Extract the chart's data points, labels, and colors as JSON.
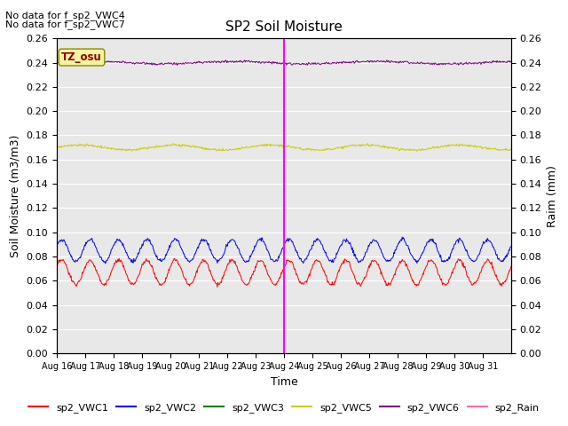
{
  "title": "SP2 Soil Moisture",
  "ylabel_left": "Soil Moisture (m3/m3)",
  "ylabel_right": "Raim (mm)",
  "xlabel": "Time",
  "no_data_text": [
    "No data for f_sp2_VWC4",
    "No data for f_sp2_VWC7"
  ],
  "tz_label": "TZ_osu",
  "ylim": [
    0.0,
    0.26
  ],
  "vline_x": 8,
  "vline_color": "magenta",
  "bg_color": "#e8e8e8",
  "colors": {
    "vwc1": "red",
    "vwc2": "blue",
    "vwc3": "green",
    "vwc5": "#cccc00",
    "vwc6": "purple",
    "rain": "#ff69b4"
  },
  "legend": [
    {
      "label": "sp2_VWC1",
      "color": "red"
    },
    {
      "label": "sp2_VWC2",
      "color": "blue"
    },
    {
      "label": "sp2_VWC3",
      "color": "green"
    },
    {
      "label": "sp2_VWC5",
      "color": "#cccc00"
    },
    {
      "label": "sp2_VWC6",
      "color": "purple"
    },
    {
      "label": "sp2_Rain",
      "color": "#ff69b4"
    }
  ],
  "tick_labels": [
    "Aug 16",
    "Aug 17",
    "Aug 18",
    "Aug 19",
    "Aug 20",
    "Aug 21",
    "Aug 22",
    "Aug 23",
    "Aug 24",
    "Aug 25",
    "Aug 26",
    "Aug 27",
    "Aug 28",
    "Aug 29",
    "Aug 30",
    "Aug 31"
  ],
  "yticks": [
    0.0,
    0.02,
    0.04,
    0.06,
    0.08,
    0.1,
    0.12,
    0.14,
    0.16,
    0.18,
    0.2,
    0.22,
    0.24,
    0.26
  ],
  "figsize": [
    6.4,
    4.8
  ],
  "dpi": 100
}
